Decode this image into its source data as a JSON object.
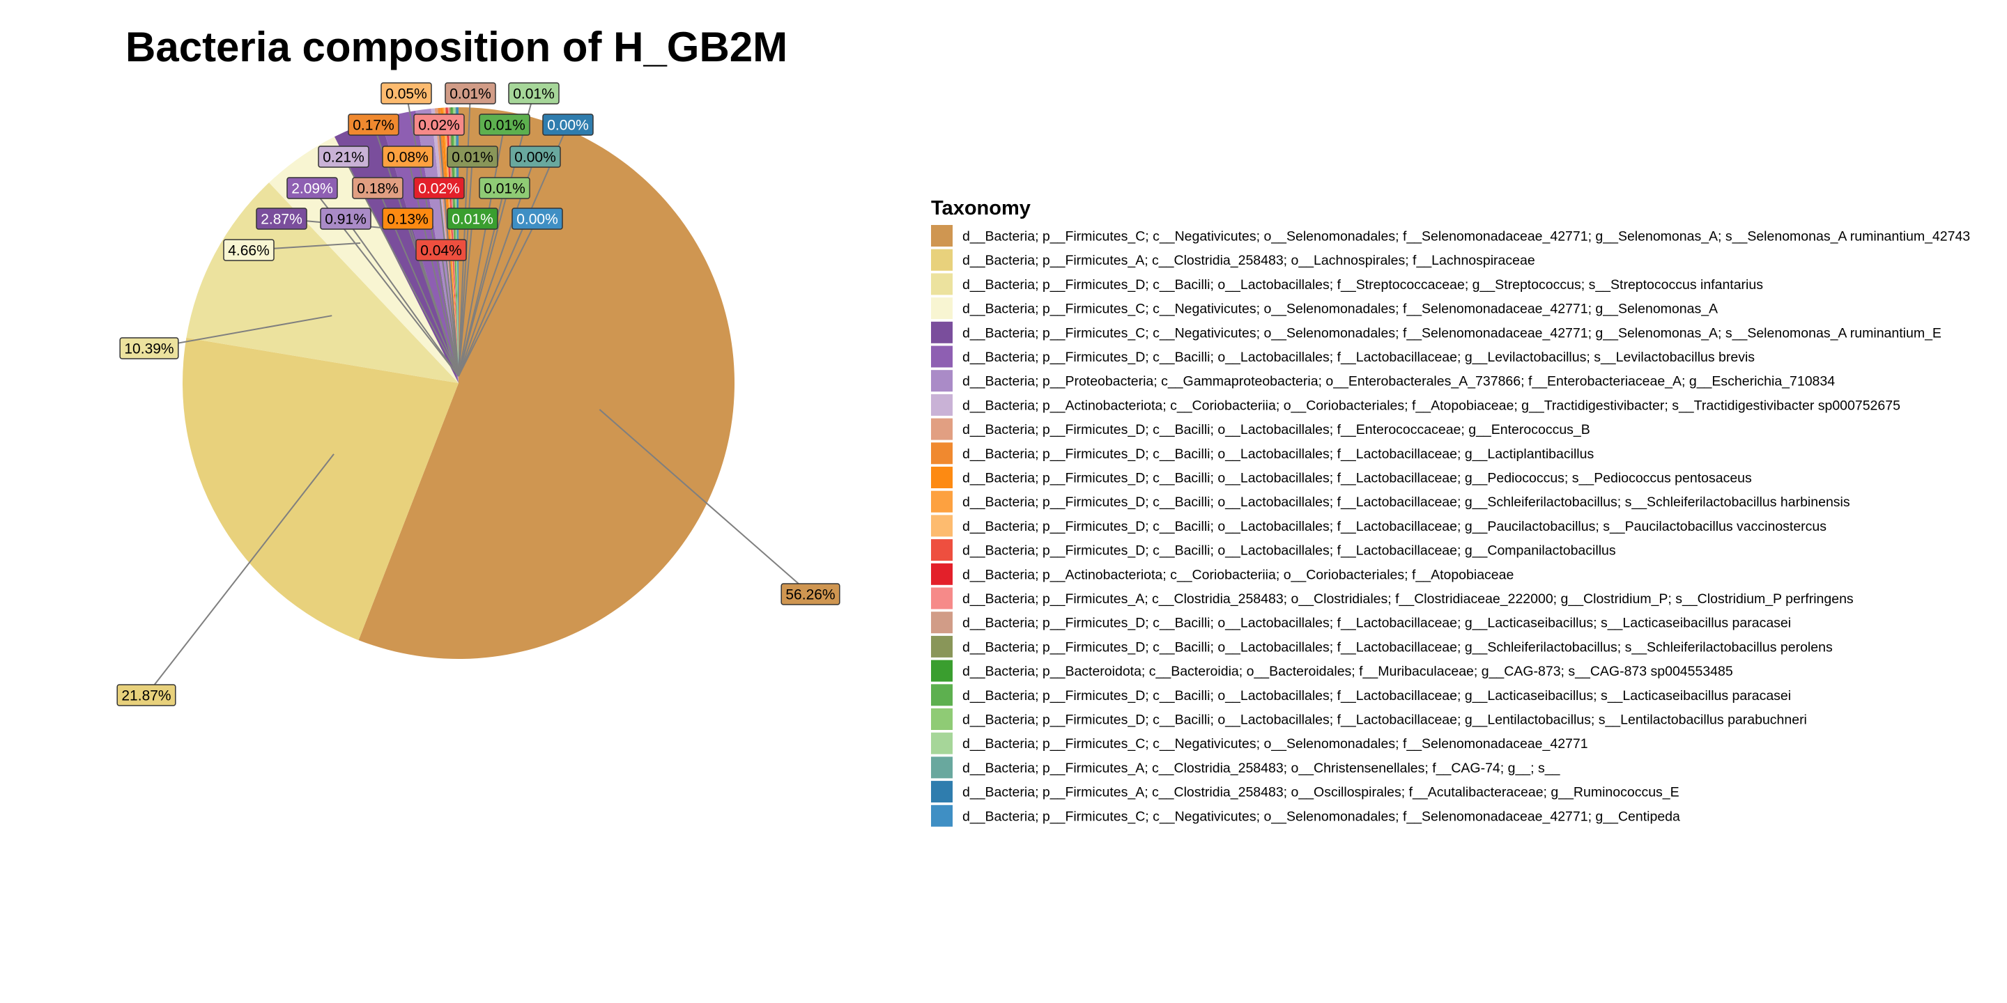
{
  "chart_data": {
    "type": "pie",
    "title": "Bacteria composition of H_GB2M",
    "legend_title": "Taxonomy",
    "legend_position": "right",
    "slices": [
      {
        "label": "d__Bacteria; p__Firmicutes_C; c__Negativicutes; o__Selenomonadales; f__Selenomonadaceae_42771; g__Selenomonas_A; s__Selenomonas_A ruminantium_42743",
        "value": 56.26,
        "value_label": "56.26%",
        "color": "#CF9651"
      },
      {
        "label": "d__Bacteria; p__Firmicutes_A; c__Clostridia_258483; o__Lachnospirales; f__Lachnospiraceae",
        "value": 21.87,
        "value_label": "21.87%",
        "color": "#E8D17C"
      },
      {
        "label": "d__Bacteria; p__Firmicutes_D; c__Bacilli; o__Lactobacillales; f__Streptococcaceae; g__Streptococcus; s__Streptococcus infantarius",
        "value": 10.39,
        "value_label": "10.39%",
        "color": "#ECE29E"
      },
      {
        "label": "d__Bacteria; p__Firmicutes_C; c__Negativicutes; o__Selenomonadales; f__Selenomonadaceae_42771; g__Selenomonas_A",
        "value": 4.66,
        "value_label": "4.66%",
        "color": "#F8F5D2"
      },
      {
        "label": "d__Bacteria; p__Firmicutes_C; c__Negativicutes; o__Selenomonadales; f__Selenomonadaceae_42771; g__Selenomonas_A; s__Selenomonas_A ruminantium_E",
        "value": 2.87,
        "value_label": "2.87%",
        "color": "#7A4E9C"
      },
      {
        "label": "d__Bacteria; p__Firmicutes_D; c__Bacilli; o__Lactobacillales; f__Lactobacillaceae; g__Levilactobacillus; s__Levilactobacillus brevis",
        "value": 2.09,
        "value_label": "2.09%",
        "color": "#8E5FB2"
      },
      {
        "label": "d__Bacteria; p__Proteobacteria; c__Gammaproteobacteria; o__Enterobacterales_A_737866; f__Enterobacteriaceae_A; g__Escherichia_710834",
        "value": 0.91,
        "value_label": "0.91%",
        "color": "#AA8BC7"
      },
      {
        "label": "d__Bacteria; p__Actinobacteriota; c__Coriobacteriia; o__Coriobacteriales; f__Atopobiaceae; g__Tractidigestivibacter; s__Tractidigestivibacter sp000752675",
        "value": 0.21,
        "value_label": "0.21%",
        "color": "#C9B2D6"
      },
      {
        "label": "d__Bacteria; p__Firmicutes_D; c__Bacilli; o__Lactobacillales; f__Enterococcaceae; g__Enterococcus_B",
        "value": 0.18,
        "value_label": "0.18%",
        "color": "#E19F82"
      },
      {
        "label": "d__Bacteria; p__Firmicutes_D; c__Bacilli; o__Lactobacillales; f__Lactobacillaceae; g__Lactiplantibacillus",
        "value": 0.17,
        "value_label": "0.17%",
        "color": "#F0892F"
      },
      {
        "label": "d__Bacteria; p__Firmicutes_D; c__Bacilli; o__Lactobacillales; f__Lactobacillaceae; g__Pediococcus; s__Pediococcus pentosaceus",
        "value": 0.13,
        "value_label": "0.13%",
        "color": "#FD8A12"
      },
      {
        "label": "d__Bacteria; p__Firmicutes_D; c__Bacilli; o__Lactobacillales; f__Lactobacillaceae; g__Schleiferilactobacillus; s__Schleiferilactobacillus harbinensis",
        "value": 0.08,
        "value_label": "0.08%",
        "color": "#FDA140"
      },
      {
        "label": "d__Bacteria; p__Firmicutes_D; c__Bacilli; o__Lactobacillales; f__Lactobacillaceae; g__Paucilactobacillus; s__Paucilactobacillus vaccinostercus",
        "value": 0.05,
        "value_label": "0.05%",
        "color": "#FDBB6F"
      },
      {
        "label": "d__Bacteria; p__Firmicutes_D; c__Bacilli; o__Lactobacillales; f__Lactobacillaceae; g__Companilactobacillus",
        "value": 0.04,
        "value_label": "0.04%",
        "color": "#EE4F3F"
      },
      {
        "label": "d__Bacteria; p__Actinobacteriota; c__Coriobacteriia; o__Coriobacteriales; f__Atopobiaceae",
        "value": 0.02,
        "value_label": "0.02%",
        "color": "#E3202A"
      },
      {
        "label": "d__Bacteria; p__Firmicutes_A; c__Clostridia_258483; o__Clostridiales; f__Clostridiaceae_222000; g__Clostridium_P; s__Clostridium_P perfringens",
        "value": 0.02,
        "value_label": "0.02%",
        "color": "#F68A89"
      },
      {
        "label": "d__Bacteria; p__Firmicutes_D; c__Bacilli; o__Lactobacillales; f__Lactobacillaceae; g__Lacticaseibacillus; s__Lacticaseibacillus paracasei",
        "value": 0.01,
        "value_label": "0.01%",
        "color": "#D19C87"
      },
      {
        "label": "d__Bacteria; p__Firmicutes_D; c__Bacilli; o__Lactobacillales; f__Lactobacillaceae; g__Schleiferilactobacillus; s__Schleiferilactobacillus perolens",
        "value": 0.01,
        "value_label": "0.01%",
        "color": "#899659"
      },
      {
        "label": "d__Bacteria; p__Bacteroidota; c__Bacteroidia; o__Bacteroidales; f__Muribaculaceae; g__CAG-873; s__CAG-873 sp004553485",
        "value": 0.01,
        "value_label": "0.01%",
        "color": "#3A9E2F"
      },
      {
        "label": "d__Bacteria; p__Firmicutes_D; c__Bacilli; o__Lactobacillales; f__Lactobacillaceae; g__Lacticaseibacillus; s__Lacticaseibacillus paracasei",
        "value": 0.01,
        "value_label": "0.01%",
        "color": "#5DB04F"
      },
      {
        "label": "d__Bacteria; p__Firmicutes_D; c__Bacilli; o__Lactobacillales; f__Lactobacillaceae; g__Lentilactobacillus; s__Lentilactobacillus parabuchneri",
        "value": 0.01,
        "value_label": "0.01%",
        "color": "#8FCB75"
      },
      {
        "label": "d__Bacteria; p__Firmicutes_C; c__Negativicutes; o__Selenomonadales; f__Selenomonadaceae_42771",
        "value": 0.01,
        "value_label": "0.01%",
        "color": "#A6D699"
      },
      {
        "label": "d__Bacteria; p__Firmicutes_A; c__Clostridia_258483; o__Christensenellales; f__CAG-74; g__; s__",
        "value": 0.0,
        "value_label": "0.00%",
        "color": "#69A89E"
      },
      {
        "label": "d__Bacteria; p__Firmicutes_A; c__Clostridia_258483; o__Oscillospirales; f__Acutalibacteraceae; g__Ruminococcus_E",
        "value": 0.0,
        "value_label": "0.00%",
        "color": "#2F7DAE"
      },
      {
        "label": "d__Bacteria; p__Firmicutes_C; c__Negativicutes; o__Selenomonadales; f__Selenomonadaceae_42771; g__Centipeda",
        "value": 0.0,
        "value_label": "0.00%",
        "color": "#3F8FC4"
      }
    ]
  }
}
